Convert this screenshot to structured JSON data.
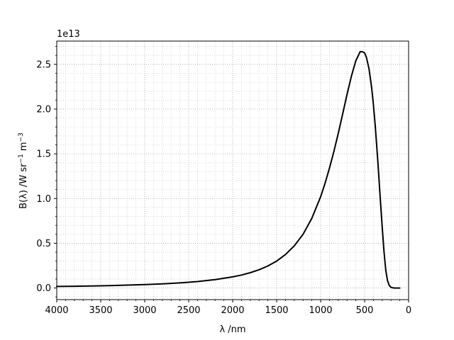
{
  "chart_data": {
    "type": "line",
    "title": "",
    "xlabel": "λ /nm",
    "ylabel_parts": {
      "main": "B(λ) /W sr",
      "exp1": "−1",
      "mid": " m",
      "exp2": "−3"
    },
    "y_offset_text": "1e13",
    "y_scale_factor": 10000000000000.0,
    "xlim": [
      4000,
      0
    ],
    "ylim": [
      -0.13,
      2.76
    ],
    "x_inverted": true,
    "grid": true,
    "grid_minor": true,
    "line_color": "#000000",
    "x_ticks": [
      4000,
      3500,
      3000,
      2500,
      2000,
      1500,
      1000,
      500,
      0
    ],
    "x_tick_labels": [
      "4000",
      "3500",
      "3000",
      "2500",
      "2000",
      "1500",
      "1000",
      "500",
      "0"
    ],
    "y_ticks": [
      0.0,
      0.5,
      1.0,
      1.5,
      2.0,
      2.5
    ],
    "y_tick_labels": [
      "0.0",
      "0.5",
      "1.0",
      "1.5",
      "2.0",
      "2.5"
    ],
    "series": [
      {
        "x": [
          4000,
          3800,
          3600,
          3400,
          3200,
          3000,
          2800,
          2600,
          2400,
          2200,
          2000,
          1900,
          1800,
          1700,
          1600,
          1500,
          1400,
          1300,
          1200,
          1100,
          1000,
          950,
          900,
          850,
          800,
          750,
          700,
          650,
          600,
          550,
          520,
          500,
          480,
          450,
          420,
          400,
          380,
          350,
          320,
          300,
          280,
          260,
          240,
          220,
          200,
          180,
          160,
          140,
          120,
          100
        ],
        "y": [
          0.017,
          0.02,
          0.023,
          0.027,
          0.032,
          0.038,
          0.046,
          0.057,
          0.072,
          0.093,
          0.124,
          0.145,
          0.171,
          0.204,
          0.246,
          0.301,
          0.374,
          0.471,
          0.6,
          0.78,
          1.02,
          1.17,
          1.339,
          1.524,
          1.727,
          1.944,
          2.163,
          2.369,
          2.54,
          2.643,
          2.64,
          2.627,
          2.58,
          2.45,
          2.24,
          2.05,
          1.82,
          1.42,
          0.97,
          0.68,
          0.41,
          0.2,
          0.085,
          0.028,
          0.007,
          0.002,
          0.0,
          0.0,
          0.0,
          0.0
        ]
      }
    ]
  }
}
